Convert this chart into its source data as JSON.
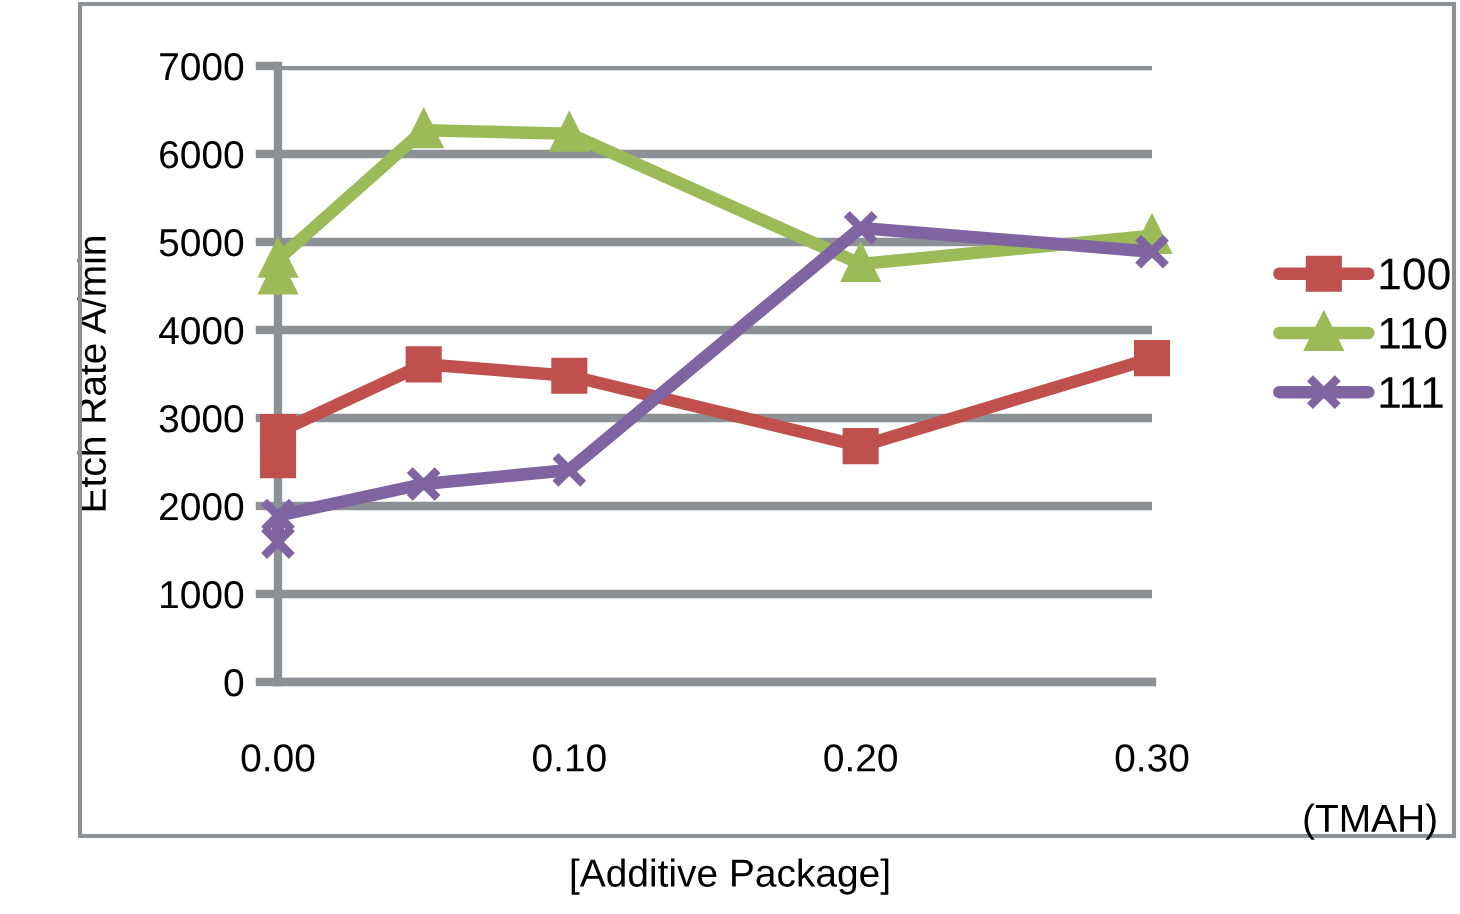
{
  "chart_data": {
    "type": "line",
    "ylabel": "Etch Rate A/min",
    "xlabel": "[Additive Package]",
    "annotations": [
      "(TMAH)"
    ],
    "x": [
      0,
      0,
      0.05,
      0.1,
      0.2,
      0.3
    ],
    "series": [
      {
        "name": "100",
        "color": "#c0504d",
        "marker": "square",
        "values": [
          2520,
          2840,
          3610,
          3480,
          2680,
          3680
        ]
      },
      {
        "name": "110",
        "color": "#9bbb59",
        "marker": "triangle",
        "values": [
          4610,
          4800,
          6270,
          6230,
          4750,
          5070
        ]
      },
      {
        "name": "111",
        "color": "#8064a2",
        "marker": "cross",
        "values": [
          1590,
          1890,
          2250,
          2410,
          5160,
          4890
        ]
      }
    ],
    "xlim": [
      0,
      0.3
    ],
    "xticks": [
      {
        "value": 0,
        "label": "0.00"
      },
      {
        "value": 0.1,
        "label": "0.10"
      },
      {
        "value": 0.2,
        "label": "0.20"
      },
      {
        "value": 0.3,
        "label": "0.30"
      }
    ],
    "ylim": [
      0,
      7000
    ],
    "yticks": [
      0,
      1000,
      2000,
      3000,
      4000,
      5000,
      6000,
      7000
    ],
    "grid": "y",
    "legend": "right"
  }
}
